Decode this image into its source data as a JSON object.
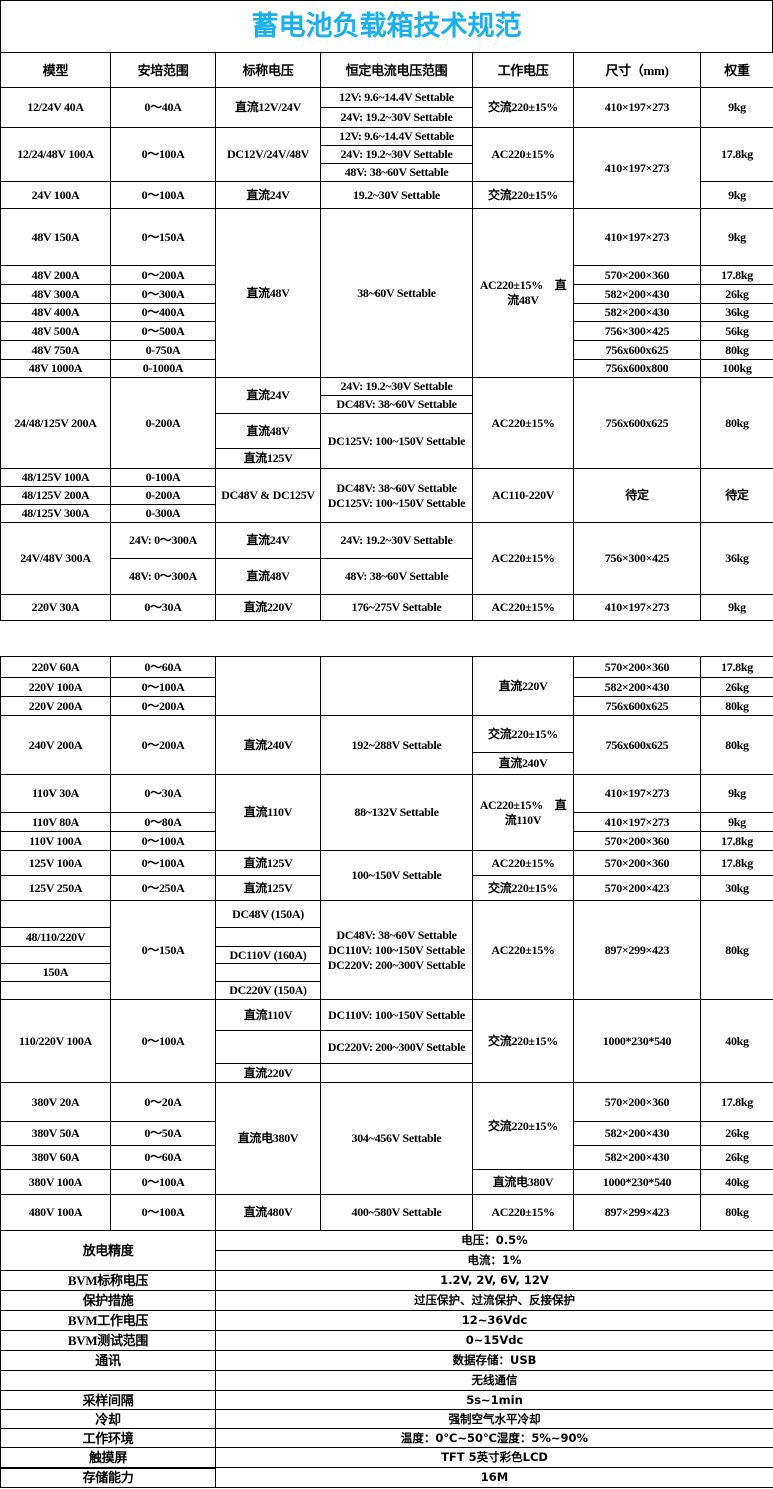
{
  "title": "蓄电池负载箱技术规范",
  "colors": {
    "title": "#1ab0ec",
    "border": "#000000"
  },
  "headers": [
    "模型",
    "安培范围",
    "标称电压",
    "恒定电流电压范围",
    "工作电压",
    "尺寸（mm)",
    "权重"
  ],
  "top": [
    [
      "12/24V 40A",
      "0～40A",
      "直流12V/24V",
      "12V: 9.6~14.4V Settable",
      "交流220±15%",
      "410×197×273",
      "9kg"
    ],
    [
      "24V: 19.2~30V Settable"
    ],
    [
      "12/24/48V 100A",
      "0～100A",
      "DC12V/24V/48V",
      "12V: 9.6~14.4V Settable",
      "AC220±15%",
      "410×197×273",
      "17.8kg"
    ],
    [
      "24V: 19.2~30V Settable"
    ],
    [
      "48V: 38~60V Settable"
    ],
    [
      "24V 100A",
      "0～100A",
      "直流24V",
      "19.2~30V Settable",
      "交流220±15%",
      "9kg"
    ],
    [
      "48V 150A",
      "0～150A",
      "直流48V",
      "38~60V Settable",
      "AC220±15%　直流48V",
      "410×197×273",
      "9kg"
    ],
    [
      "48V 200A",
      "0～200A",
      "570×200×360",
      "17.8kg"
    ],
    [
      "48V 300A",
      "0～300A",
      "582×200×430",
      "26kg"
    ],
    [
      "48V 400A",
      "0～400A",
      "582×200×430",
      "36kg"
    ],
    [
      "48V 500A",
      "0～500A",
      "756×300×425",
      "56kg"
    ],
    [
      "48V 750A",
      "0-750A",
      "756x600x625",
      "80kg"
    ],
    [
      "48V 1000A",
      "0-1000A",
      "756x600x800",
      "100kg"
    ],
    [
      "24/48/125V 200A",
      "0-200A",
      "直流24V",
      "24V: 19.2~30V Settable",
      "AC220±15%",
      "756x600x625",
      "80kg"
    ],
    [
      "DC48V: 38~60V Settable"
    ],
    [
      "直流48V",
      "DC125V: 100~150V Settable"
    ],
    [
      "直流125V"
    ],
    [
      "48/125V 100A",
      "0-100A",
      "DC48V & DC125V",
      "DC48V: 38~60V Settable DC125V: 100~150V Settable",
      "AC110-220V",
      "待定",
      "待定"
    ],
    [
      "48/125V 200A",
      "0-200A"
    ],
    [
      "48/125V 300A",
      "0-300A"
    ],
    [
      "24V/48V 300A",
      "24V: 0～300A",
      "直流24V",
      "24V: 19.2~30V Settable",
      "AC220±15%",
      "756×300×425",
      "36kg"
    ],
    [
      "48V: 0～300A",
      "直流48V",
      "48V: 38~60V Settable"
    ],
    [
      "220V 30A",
      "0～30A",
      "直流220V",
      "176~275V Settable",
      "AC220±15%",
      "410×197×273",
      "9kg"
    ]
  ],
  "bottom": [
    [
      "220V 60A",
      "0～60A",
      "直流220V",
      "570×200×360",
      "17.8kg"
    ],
    [
      "220V 100A",
      "0～100A",
      "582×200×430",
      "26kg"
    ],
    [
      "220V 200A",
      "0～200A",
      "756x600x625",
      "80kg"
    ],
    [
      "240V 200A",
      "0～200A",
      "直流240V",
      "192~288V Settable",
      "交流220±15%",
      "756x600x625",
      "80kg"
    ],
    [
      "直流240V"
    ],
    [
      "110V 30A",
      "0～30A",
      "直流110V",
      "88~132V Settable",
      "AC220±15%　直流110V",
      "410×197×273",
      "9kg"
    ],
    [
      "110V 80A",
      "0～80A",
      "410×197×273",
      "9kg"
    ],
    [
      "110V 100A",
      "0～100A",
      "570×200×360",
      "17.8kg"
    ],
    [
      "125V 100A",
      "0～100A",
      "直流125V",
      "100~150V Settable",
      "AC220±15%",
      "570×200×360",
      "17.8kg"
    ],
    [
      "125V 250A",
      "0～250A",
      "直流125V",
      "交流220±15%",
      "570×200×423",
      "30kg"
    ],
    [
      "0～150A",
      "DC48V (150A)",
      "DC48V: 38~60V Settable DC110V: 100~150V Settable DC220V: 200~300V Settable",
      "AC220±15%",
      "897×299×423",
      "80kg"
    ],
    [
      "48/110/220V"
    ],
    [
      "DC110V (160A)"
    ],
    [
      "150A"
    ],
    [
      "DC220V (150A)"
    ],
    [
      "110/220V 100A",
      "0～100A",
      "直流110V",
      "DC110V: 100~150V Settable",
      "交流220±15%",
      "1000*230*540",
      "40kg"
    ],
    [
      "DC220V: 200~300V Settable"
    ],
    [
      "直流220V"
    ],
    [
      "380V 20A",
      "0～20A",
      "直流电380V",
      "304~456V Settable",
      "交流220±15%",
      "570×200×360",
      "17.8kg"
    ],
    [
      "380V 50A",
      "0～50A",
      "582×200×430",
      "26kg"
    ],
    [
      "380V 60A",
      "0～60A",
      "582×200×430",
      "26kg"
    ],
    [
      "380V 100A",
      "0～100A",
      "直流电380V",
      "1000*230*540",
      "40kg"
    ],
    [
      "480V 100A",
      "0～100A",
      "直流480V",
      "400~580V Settable",
      "AC220±15%",
      "897×299×423",
      "80kg"
    ]
  ],
  "specs": [
    {
      "label": "放电精度",
      "values": [
        "电压：0.5%",
        "电流：1%"
      ]
    },
    {
      "label": "BVM标称电压",
      "values": [
        "1.2V, 2V, 6V, 12V"
      ]
    },
    {
      "label": "保护措施",
      "values": [
        "过压保护、过流保护、反接保护"
      ]
    },
    {
      "label": "BVM工作电压",
      "values": [
        "12~36Vdc"
      ]
    },
    {
      "label": "BVM测试范围",
      "values": [
        "0~15Vdc"
      ]
    },
    {
      "label": "通讯",
      "values": [
        "数据存储：USB"
      ]
    },
    {
      "label": "",
      "values": [
        "无线通信"
      ]
    },
    {
      "label": "采样间隔",
      "values": [
        "5s~1min"
      ]
    },
    {
      "label": "冷却",
      "values": [
        "强制空气水平冷却"
      ]
    },
    {
      "label": "工作环境",
      "values": [
        "温度：0℃~50℃湿度：5%~90%"
      ]
    },
    {
      "label": "触摸屏",
      "values": [
        "TFT 5英寸彩色LCD"
      ]
    },
    {
      "label": "存储能力",
      "values": [
        "16M"
      ]
    }
  ]
}
